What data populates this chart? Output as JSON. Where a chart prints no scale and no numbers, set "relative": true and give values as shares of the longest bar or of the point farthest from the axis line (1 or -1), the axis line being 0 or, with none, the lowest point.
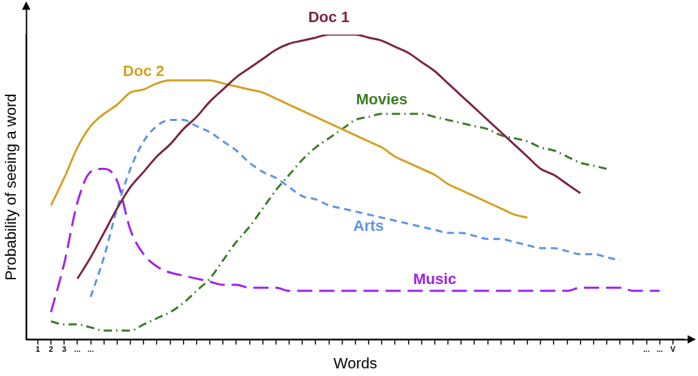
{
  "chart_data": {
    "type": "line",
    "relative": true,
    "xlabel": "Words",
    "ylabel": "Probability of seeing a word",
    "legend": false,
    "grid": false,
    "marker": "none",
    "categories": [
      "1",
      "2",
      "3",
      "...",
      "...",
      null,
      null,
      null,
      null,
      null,
      null,
      null,
      null,
      null,
      null,
      null,
      null,
      null,
      null,
      null,
      null,
      null,
      null,
      null,
      null,
      null,
      null,
      null,
      null,
      null,
      null,
      null,
      null,
      null,
      null,
      null,
      null,
      null,
      null,
      null,
      null,
      null,
      null,
      null,
      null,
      null,
      "...",
      "...",
      "V"
    ],
    "series": [
      {
        "name": "Doc 1",
        "color": "#7b2346",
        "line_style": "solid",
        "values": [
          null,
          null,
          null,
          0.2,
          0.27,
          0.35,
          0.43,
          0.5,
          0.55,
          0.6,
          0.64,
          0.69,
          0.73,
          0.78,
          0.82,
          0.86,
          0.89,
          0.92,
          0.95,
          0.97,
          0.98,
          0.99,
          1.0,
          1.0,
          1.0,
          0.99,
          0.98,
          0.96,
          0.94,
          0.91,
          0.88,
          0.84,
          0.8,
          0.76,
          0.72,
          0.68,
          0.64,
          0.6,
          0.56,
          0.54,
          0.51,
          0.48,
          null,
          null,
          null,
          null,
          null,
          null,
          null
        ]
      },
      {
        "name": "Doc 2",
        "color": "#d4a020",
        "line_style": "solid",
        "values": [
          null,
          0.44,
          0.53,
          0.63,
          0.7,
          0.74,
          0.77,
          0.81,
          0.82,
          0.84,
          0.85,
          0.85,
          0.85,
          0.85,
          0.84,
          0.83,
          0.82,
          0.81,
          0.79,
          0.77,
          0.75,
          0.73,
          0.71,
          0.69,
          0.67,
          0.65,
          0.63,
          0.6,
          0.58,
          0.56,
          0.54,
          0.51,
          0.49,
          0.47,
          0.45,
          0.43,
          0.41,
          0.4,
          null,
          null,
          null,
          null,
          null,
          null,
          null,
          null,
          null,
          null,
          null
        ]
      },
      {
        "name": "Movies",
        "color": "#3a7d24",
        "line_style": "dashdot",
        "values": [
          null,
          0.06,
          0.05,
          0.05,
          0.04,
          0.03,
          0.03,
          0.03,
          0.05,
          0.07,
          0.09,
          0.12,
          0.16,
          0.2,
          0.26,
          0.32,
          0.37,
          0.43,
          0.49,
          0.54,
          0.59,
          0.63,
          0.66,
          0.69,
          0.72,
          0.73,
          0.74,
          0.74,
          0.74,
          0.74,
          0.73,
          0.72,
          0.71,
          0.7,
          0.69,
          0.67,
          0.66,
          0.65,
          0.63,
          0.62,
          0.6,
          0.58,
          0.57,
          0.56,
          null,
          null,
          null,
          null,
          null
        ]
      },
      {
        "name": "Arts",
        "color": "#5b94e6",
        "line_style": "dashed",
        "values": [
          null,
          null,
          null,
          null,
          0.14,
          0.27,
          0.43,
          0.56,
          0.65,
          0.7,
          0.72,
          0.72,
          0.7,
          0.68,
          0.65,
          0.62,
          0.58,
          0.55,
          0.53,
          0.5,
          0.47,
          0.46,
          0.44,
          0.43,
          0.42,
          0.41,
          0.4,
          0.39,
          0.38,
          0.37,
          0.36,
          0.35,
          0.35,
          0.34,
          0.33,
          0.33,
          0.32,
          0.31,
          0.3,
          0.3,
          0.29,
          0.28,
          0.28,
          0.27,
          0.26,
          null,
          null,
          null,
          null
        ]
      },
      {
        "name": "Music",
        "color": "#a020f0",
        "line_style": "longdash",
        "values": [
          null,
          0.09,
          0.25,
          0.45,
          0.55,
          0.56,
          0.52,
          0.36,
          0.28,
          0.24,
          0.22,
          0.21,
          0.2,
          0.19,
          0.18,
          0.18,
          0.17,
          0.17,
          0.17,
          0.16,
          0.16,
          0.16,
          0.16,
          0.16,
          0.16,
          0.16,
          0.16,
          0.16,
          0.16,
          0.16,
          0.16,
          0.16,
          0.16,
          0.16,
          0.16,
          0.16,
          0.16,
          0.16,
          0.16,
          0.16,
          0.16,
          0.17,
          0.17,
          0.17,
          0.17,
          0.16,
          0.16,
          0.16,
          null
        ]
      }
    ]
  }
}
